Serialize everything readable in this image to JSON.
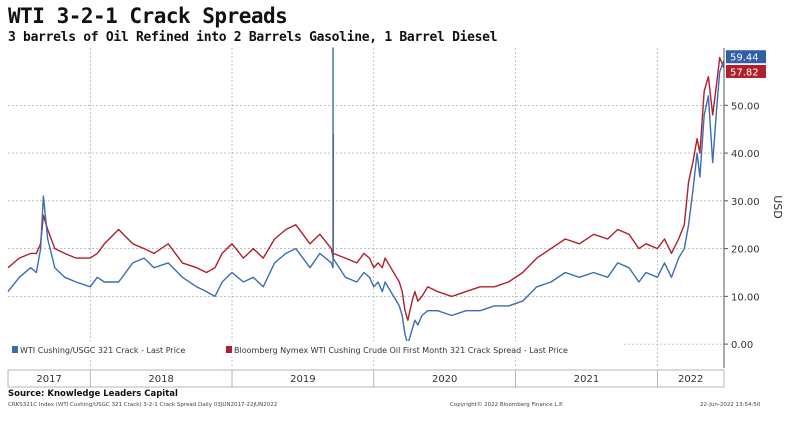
{
  "title": "WTI 3-2-1 Crack Spreads",
  "subtitle": "3 barrels of Oil Refined into 2 Barrels Gasoline, 1 Barrel Diesel",
  "footer": {
    "source": "Source: Knowledge Leaders Capital",
    "left": "CRKS321C Index (WTI Cushing/USGC 321 Crack) 3-2-1 Crack Spread  Daily 03JUN2017-22JUN2022",
    "middle": "Copyright© 2022 Bloomberg Finance L.P.",
    "right": "22-Jun-2022 13:54:50"
  },
  "chart_data": {
    "type": "line",
    "ylabel": "USD",
    "ylim": [
      -5,
      62
    ],
    "yticks": [
      0,
      10,
      20,
      30,
      40,
      50
    ],
    "ytick_labels": [
      "0.00",
      "10.00",
      "20.00",
      "30.00",
      "40.00",
      "50.00"
    ],
    "xlim": [
      2017.42,
      2022.47
    ],
    "year_labels": [
      {
        "label": "2017",
        "center": 2017.71
      },
      {
        "label": "2018",
        "center": 2018.5
      },
      {
        "label": "2019",
        "center": 2019.5
      },
      {
        "label": "2020",
        "center": 2020.5
      },
      {
        "label": "2021",
        "center": 2021.5
      },
      {
        "label": "2022",
        "center": 2022.235
      }
    ],
    "year_boundaries": [
      2018,
      2019,
      2020,
      2021,
      2022
    ],
    "last_values": [
      {
        "series": 0,
        "label": "59.44",
        "value": 59.44,
        "color": "#2f5fa7"
      },
      {
        "series": 1,
        "label": "57.82",
        "value": 57.82,
        "color": "#b0202a"
      }
    ],
    "legend_position": "bottom-left",
    "series": [
      {
        "name": "WTI Cushing/USGC 321 Crack - Last Price",
        "color": "#3b6db5",
        "x": [
          2017.42,
          2017.5,
          2017.58,
          2017.62,
          2017.65,
          2017.67,
          2017.7,
          2017.75,
          2017.82,
          2017.9,
          2018.0,
          2018.05,
          2018.1,
          2018.2,
          2018.3,
          2018.38,
          2018.45,
          2018.55,
          2018.65,
          2018.75,
          2018.82,
          2018.88,
          2018.93,
          2019.0,
          2019.08,
          2019.15,
          2019.22,
          2019.3,
          2019.38,
          2019.45,
          2019.5,
          2019.55,
          2019.62,
          2019.7,
          2019.8,
          2019.88,
          2019.93,
          2019.97,
          2020.0,
          2020.03,
          2020.06,
          2020.08,
          2020.12,
          2020.16,
          2020.18,
          2020.2,
          2020.22,
          2020.24,
          2020.27,
          2020.29,
          2020.31,
          2020.34,
          2020.38,
          2020.45,
          2020.55,
          2020.65,
          2020.75,
          2020.85,
          2020.95,
          2021.05,
          2021.15,
          2021.25,
          2021.35,
          2021.45,
          2021.55,
          2021.65,
          2021.72,
          2021.8,
          2021.87,
          2021.92,
          2022.0,
          2022.05,
          2022.1,
          2022.15,
          2022.19,
          2022.22,
          2022.25,
          2022.28,
          2022.3,
          2022.33,
          2022.36,
          2022.39,
          2022.42,
          2022.44,
          2022.47
        ],
        "values": [
          11,
          14,
          16,
          15,
          20,
          31,
          22,
          16,
          14,
          13,
          12,
          14,
          13,
          13,
          17,
          18,
          16,
          17,
          14,
          12,
          11,
          10,
          13,
          15,
          13,
          14,
          12,
          17,
          19,
          20,
          18,
          16,
          19,
          17,
          14,
          13,
          15,
          14,
          12,
          13,
          11,
          13,
          11,
          9,
          8,
          6,
          2,
          0,
          3,
          5,
          4,
          6,
          7,
          7,
          6,
          7,
          7,
          8,
          8,
          9,
          12,
          13,
          15,
          14,
          15,
          14,
          17,
          16,
          13,
          15,
          14,
          17,
          14,
          18,
          20,
          25,
          32,
          40,
          35,
          48,
          52,
          38,
          50,
          57,
          59.44
        ]
      },
      {
        "name": "Bloomberg Nymex WTI Cushing Crude Oil First Month 321 Crack Spread - Last Price",
        "color": "#b0202a",
        "x": [
          2017.42,
          2017.5,
          2017.58,
          2017.62,
          2017.65,
          2017.67,
          2017.7,
          2017.75,
          2017.82,
          2017.9,
          2018.0,
          2018.05,
          2018.1,
          2018.2,
          2018.3,
          2018.38,
          2018.45,
          2018.55,
          2018.65,
          2018.75,
          2018.82,
          2018.88,
          2018.93,
          2019.0,
          2019.08,
          2019.15,
          2019.22,
          2019.3,
          2019.38,
          2019.45,
          2019.5,
          2019.55,
          2019.62,
          2019.7,
          2019.8,
          2019.88,
          2019.93,
          2019.97,
          2020.0,
          2020.03,
          2020.06,
          2020.08,
          2020.12,
          2020.16,
          2020.18,
          2020.2,
          2020.22,
          2020.24,
          2020.27,
          2020.29,
          2020.31,
          2020.34,
          2020.38,
          2020.45,
          2020.55,
          2020.65,
          2020.75,
          2020.85,
          2020.95,
          2021.05,
          2021.15,
          2021.25,
          2021.35,
          2021.45,
          2021.55,
          2021.65,
          2021.72,
          2021.8,
          2021.87,
          2021.92,
          2022.0,
          2022.05,
          2022.1,
          2022.15,
          2022.19,
          2022.22,
          2022.25,
          2022.28,
          2022.3,
          2022.33,
          2022.36,
          2022.39,
          2022.42,
          2022.44,
          2022.47
        ],
        "values": [
          16,
          18,
          19,
          19,
          21,
          27,
          24,
          20,
          19,
          18,
          18,
          19,
          21,
          24,
          21,
          20,
          19,
          21,
          17,
          16,
          15,
          16,
          19,
          21,
          18,
          20,
          18,
          22,
          24,
          25,
          23,
          21,
          23,
          20,
          18,
          17,
          19,
          18,
          16,
          17,
          16,
          18,
          16,
          14,
          13,
          11,
          7,
          5,
          9,
          11,
          9,
          10,
          12,
          11,
          10,
          11,
          12,
          12,
          13,
          15,
          18,
          20,
          22,
          21,
          23,
          22,
          24,
          23,
          20,
          21,
          20,
          22,
          19,
          22,
          25,
          34,
          38,
          43,
          40,
          53,
          56,
          48,
          55,
          60,
          57.82
        ]
      }
    ],
    "spikes": [
      {
        "series": 0,
        "x": 2019.712,
        "values": [
          16,
          62,
          18
        ]
      },
      {
        "series": 1,
        "x": 2019.714,
        "values": [
          18,
          44,
          19
        ]
      }
    ]
  }
}
